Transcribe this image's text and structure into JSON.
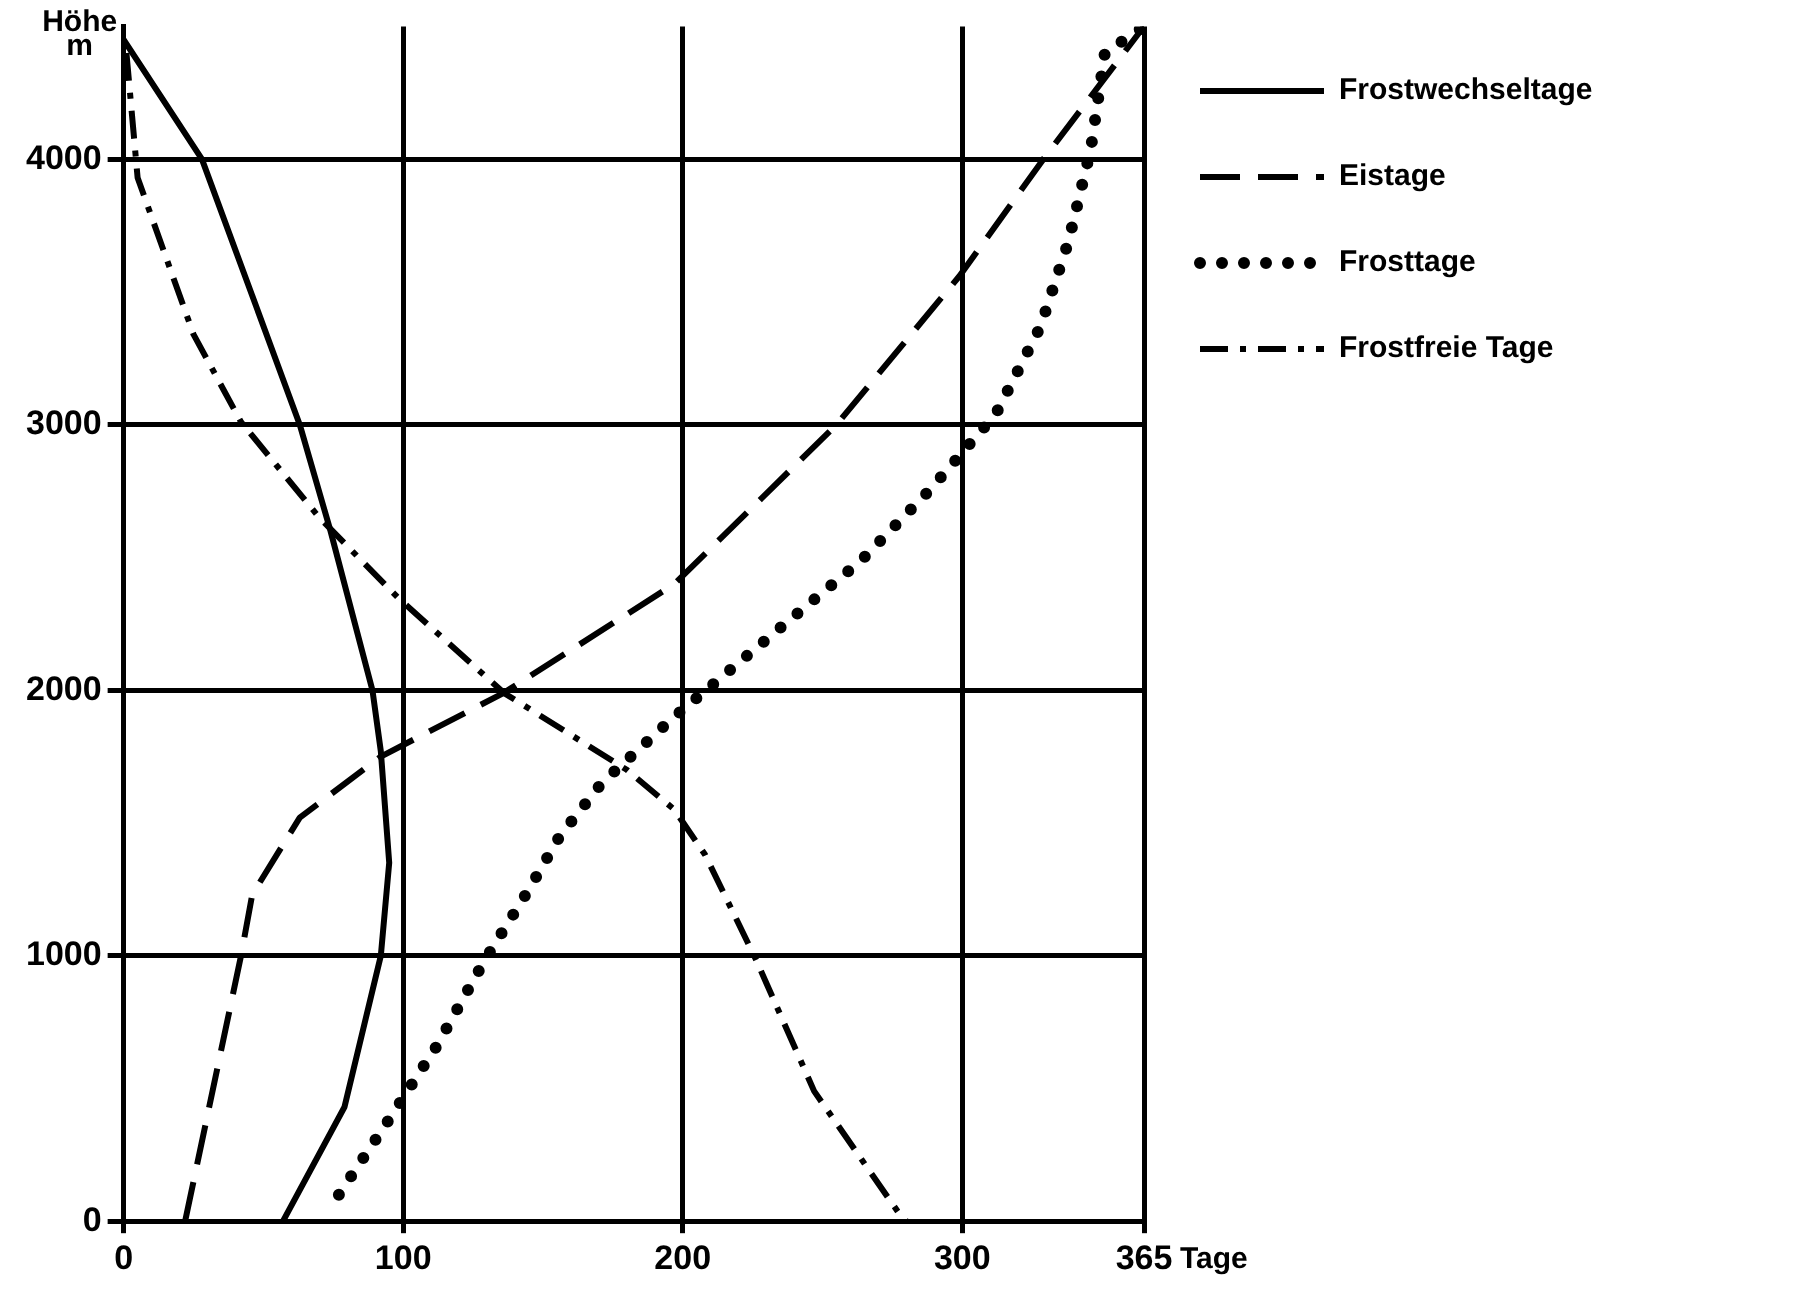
{
  "chart_data": {
    "type": "line",
    "xlabel": "Tage",
    "ylabel": "Höhe\nm",
    "xlim": [
      0,
      365
    ],
    "xticks": [
      0,
      100,
      200,
      300,
      365
    ],
    "ylim": [
      0,
      4500
    ],
    "yticks": [
      0,
      1000,
      2000,
      3000,
      4000
    ],
    "grid": true,
    "legend": "top right",
    "marker": "none",
    "series": [
      {
        "name": "Frostwechseltage",
        "color": "#000000",
        "line_style": "solid",
        "x": [
          0,
          28,
          63,
          74,
          89,
          92,
          95,
          92,
          79,
          57
        ],
        "values": [
          4450,
          4000,
          3000,
          2600,
          2000,
          1770,
          1350,
          1000,
          430,
          0
        ]
      },
      {
        "name": "Eistage",
        "color": "#000000",
        "line_style": "dashed",
        "x": [
          22,
          42,
          46,
          63,
          92,
          136,
          197,
          255,
          299,
          329,
          365
        ],
        "values": [
          0,
          1000,
          1230,
          1520,
          1750,
          1990,
          2400,
          3000,
          3560,
          4000,
          4500
        ]
      },
      {
        "name": "Frosttage",
        "color": "#000000",
        "line_style": "dotted",
        "x": [
          77,
          96,
          112,
          129,
          145,
          156,
          171,
          197,
          214,
          240,
          264,
          288,
          312,
          328,
          338,
          346,
          351,
          365
        ],
        "values": [
          100,
          400,
          660,
          980,
          1250,
          1450,
          1650,
          1900,
          2050,
          2280,
          2490,
          2750,
          3040,
          3370,
          3690,
          4040,
          4400,
          4500
        ]
      },
      {
        "name": "Frostfreie Tage",
        "color": "#000000",
        "line_style": "dashdot",
        "x": [
          1,
          5,
          25,
          42,
          70,
          98,
          136,
          180,
          197,
          208,
          226,
          247,
          278,
          280
        ],
        "values": [
          4400,
          3930,
          3340,
          3010,
          2650,
          2350,
          1990,
          1700,
          1550,
          1380,
          990,
          490,
          20,
          0
        ]
      }
    ]
  }
}
